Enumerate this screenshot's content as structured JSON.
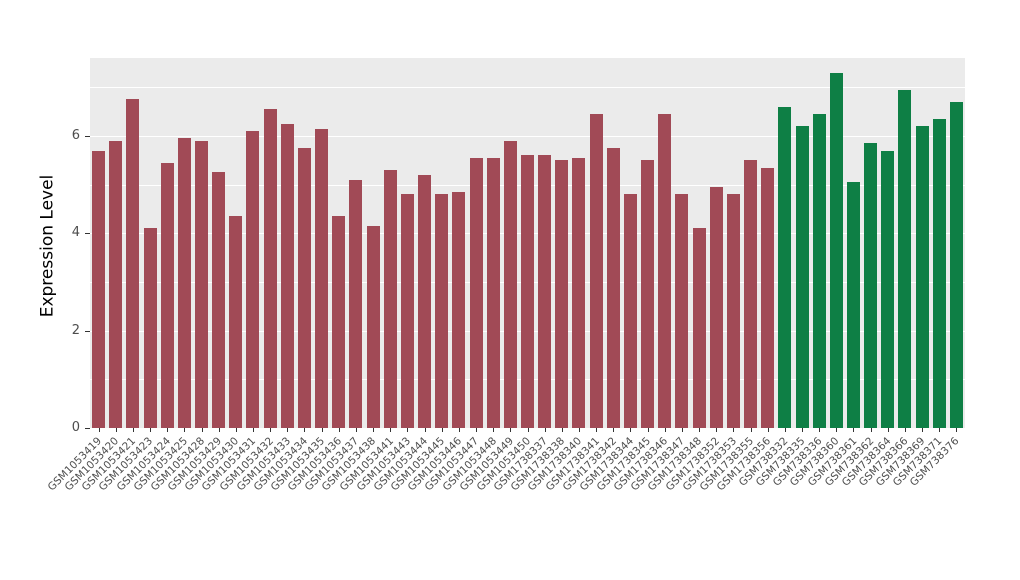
{
  "chart_data": {
    "type": "bar",
    "title": "",
    "xlabel": "",
    "ylabel": "Expression Level",
    "ylim": [
      0,
      7.6
    ],
    "yticks": [
      0,
      2,
      4,
      6
    ],
    "yticks_minor": [
      1,
      3,
      5,
      7
    ],
    "grid": "on",
    "legend": "none",
    "panel_background": "#EBEBEB",
    "groups": {
      "group1": {
        "color": "#A14A56"
      },
      "group2": {
        "color": "#0E7F45"
      }
    },
    "samples": [
      {
        "label": "GSM1053419",
        "value": 5.7,
        "group": "group1"
      },
      {
        "label": "GSM1053420",
        "value": 5.9,
        "group": "group1"
      },
      {
        "label": "GSM1053421",
        "value": 6.75,
        "group": "group1"
      },
      {
        "label": "GSM1053423",
        "value": 4.1,
        "group": "group1"
      },
      {
        "label": "GSM1053424",
        "value": 5.45,
        "group": "group1"
      },
      {
        "label": "GSM1053425",
        "value": 5.95,
        "group": "group1"
      },
      {
        "label": "GSM1053428",
        "value": 5.9,
        "group": "group1"
      },
      {
        "label": "GSM1053429",
        "value": 5.25,
        "group": "group1"
      },
      {
        "label": "GSM1053430",
        "value": 4.35,
        "group": "group1"
      },
      {
        "label": "GSM1053431",
        "value": 6.1,
        "group": "group1"
      },
      {
        "label": "GSM1053432",
        "value": 6.55,
        "group": "group1"
      },
      {
        "label": "GSM1053433",
        "value": 6.25,
        "group": "group1"
      },
      {
        "label": "GSM1053434",
        "value": 5.75,
        "group": "group1"
      },
      {
        "label": "GSM1053435",
        "value": 6.15,
        "group": "group1"
      },
      {
        "label": "GSM1053436",
        "value": 4.35,
        "group": "group1"
      },
      {
        "label": "GSM1053437",
        "value": 5.1,
        "group": "group1"
      },
      {
        "label": "GSM1053438",
        "value": 4.15,
        "group": "group1"
      },
      {
        "label": "GSM1053441",
        "value": 5.3,
        "group": "group1"
      },
      {
        "label": "GSM1053443",
        "value": 4.8,
        "group": "group1"
      },
      {
        "label": "GSM1053444",
        "value": 5.2,
        "group": "group1"
      },
      {
        "label": "GSM1053445",
        "value": 4.8,
        "group": "group1"
      },
      {
        "label": "GSM1053446",
        "value": 4.85,
        "group": "group1"
      },
      {
        "label": "GSM1053447",
        "value": 5.55,
        "group": "group1"
      },
      {
        "label": "GSM1053448",
        "value": 5.55,
        "group": "group1"
      },
      {
        "label": "GSM1053449",
        "value": 5.9,
        "group": "group1"
      },
      {
        "label": "GSM1053450",
        "value": 5.6,
        "group": "group1"
      },
      {
        "label": "GSM1738337",
        "value": 5.6,
        "group": "group1"
      },
      {
        "label": "GSM1738338",
        "value": 5.5,
        "group": "group1"
      },
      {
        "label": "GSM1738340",
        "value": 5.55,
        "group": "group1"
      },
      {
        "label": "GSM1738341",
        "value": 6.45,
        "group": "group1"
      },
      {
        "label": "GSM1738342",
        "value": 5.75,
        "group": "group1"
      },
      {
        "label": "GSM1738344",
        "value": 4.8,
        "group": "group1"
      },
      {
        "label": "GSM1738345",
        "value": 5.5,
        "group": "group1"
      },
      {
        "label": "GSM1738346",
        "value": 6.45,
        "group": "group1"
      },
      {
        "label": "GSM1738347",
        "value": 4.8,
        "group": "group1"
      },
      {
        "label": "GSM1738348",
        "value": 4.1,
        "group": "group1"
      },
      {
        "label": "GSM1738352",
        "value": 4.95,
        "group": "group1"
      },
      {
        "label": "GSM1738353",
        "value": 4.8,
        "group": "group1"
      },
      {
        "label": "GSM1738355",
        "value": 5.5,
        "group": "group1"
      },
      {
        "label": "GSM1738356",
        "value": 5.35,
        "group": "group1"
      },
      {
        "label": "GSM738332",
        "value": 6.6,
        "group": "group2"
      },
      {
        "label": "GSM738335",
        "value": 6.2,
        "group": "group2"
      },
      {
        "label": "GSM738336",
        "value": 6.45,
        "group": "group2"
      },
      {
        "label": "GSM738360",
        "value": 7.3,
        "group": "group2"
      },
      {
        "label": "GSM738361",
        "value": 5.05,
        "group": "group2"
      },
      {
        "label": "GSM738362",
        "value": 5.85,
        "group": "group2"
      },
      {
        "label": "GSM738364",
        "value": 5.7,
        "group": "group2"
      },
      {
        "label": "GSM738366",
        "value": 6.95,
        "group": "group2"
      },
      {
        "label": "GSM738369",
        "value": 6.2,
        "group": "group2"
      },
      {
        "label": "GSM738371",
        "value": 6.35,
        "group": "group2"
      },
      {
        "label": "GSM738376",
        "value": 6.7,
        "group": "group2"
      }
    ]
  }
}
